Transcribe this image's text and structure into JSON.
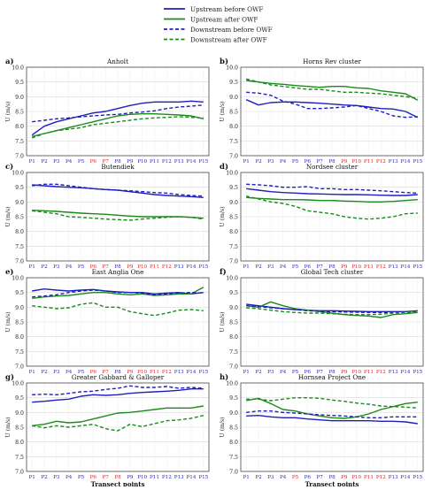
{
  "legend": [
    {
      "label": "Upstream before OWF",
      "color": "#1f1fbf",
      "dash": false
    },
    {
      "label": "Upstream after OWF",
      "color": "#1a8a1a",
      "dash": false
    },
    {
      "label": "Downstream before OWF",
      "color": "#1f1fbf",
      "dash": true
    },
    {
      "label": "Downstream after OWF",
      "color": "#1a8a1a",
      "dash": true
    }
  ],
  "xlabel": "Transect points",
  "ylabel": "U (m/s)",
  "yticks": [
    "7.0",
    "7.5",
    "8.0",
    "8.5",
    "9.0",
    "9.5",
    "10.0"
  ],
  "ylim": [
    7.0,
    10.0
  ],
  "categories": [
    "P1",
    "P2",
    "P3",
    "P4",
    "P5",
    "P6",
    "P7",
    "P8",
    "P9",
    "P10",
    "P11",
    "P12",
    "P13",
    "P14",
    "P15"
  ],
  "colors": {
    "blue": "#1f1fbf",
    "green": "#1a8a1a",
    "red_tick": "#e02020",
    "blue_tick": "#1f1fbf"
  },
  "chart_data": [
    {
      "type": "line",
      "panel_letter": "a)",
      "title": "Anholt",
      "red_ticks": [
        6,
        7
      ],
      "series": [
        {
          "name": "Upstream before OWF",
          "values": [
            7.7,
            8.0,
            8.15,
            8.25,
            8.35,
            8.45,
            8.5,
            8.6,
            8.7,
            8.78,
            8.82,
            8.82,
            8.82,
            8.85,
            8.82
          ]
        },
        {
          "name": "Upstream after OWF",
          "values": [
            7.65,
            7.75,
            7.85,
            7.95,
            8.05,
            8.15,
            8.25,
            8.35,
            8.4,
            8.42,
            8.42,
            8.4,
            8.38,
            8.35,
            8.25
          ]
        },
        {
          "name": "Downstream before OWF",
          "values": [
            8.15,
            8.2,
            8.25,
            8.28,
            8.32,
            8.35,
            8.38,
            8.4,
            8.45,
            8.48,
            8.52,
            8.6,
            8.65,
            8.68,
            8.72
          ]
        },
        {
          "name": "Downstream after OWF",
          "values": [
            7.6,
            7.75,
            7.85,
            7.9,
            7.95,
            8.05,
            8.1,
            8.15,
            8.2,
            8.25,
            8.28,
            8.3,
            8.32,
            8.3,
            8.28
          ]
        }
      ]
    },
    {
      "type": "line",
      "panel_letter": "b)",
      "title": "Horns Rev cluster",
      "red_ticks": [
        9,
        10,
        11,
        12
      ],
      "series": [
        {
          "name": "Upstream before OWF",
          "values": [
            8.9,
            8.72,
            8.8,
            8.82,
            8.82,
            8.8,
            8.78,
            8.75,
            8.72,
            8.7,
            8.65,
            8.6,
            8.58,
            8.5,
            8.3
          ]
        },
        {
          "name": "Upstream after OWF",
          "values": [
            9.55,
            9.5,
            9.45,
            9.42,
            9.38,
            9.35,
            9.32,
            9.35,
            9.35,
            9.3,
            9.28,
            9.2,
            9.15,
            9.1,
            8.88
          ]
        },
        {
          "name": "Downstream before OWF",
          "values": [
            9.15,
            9.12,
            9.05,
            8.85,
            8.75,
            8.6,
            8.6,
            8.62,
            8.65,
            8.7,
            8.6,
            8.5,
            8.35,
            8.3,
            8.32
          ]
        },
        {
          "name": "Downstream after OWF",
          "values": [
            9.6,
            9.5,
            9.4,
            9.35,
            9.3,
            9.25,
            9.25,
            9.2,
            9.15,
            9.15,
            9.12,
            9.1,
            9.05,
            9.0,
            8.95
          ]
        }
      ]
    },
    {
      "type": "line",
      "panel_letter": "c)",
      "title": "Butendiek",
      "red_ticks": [
        6,
        7,
        9,
        10,
        11,
        12
      ],
      "series": [
        {
          "name": "Upstream before OWF",
          "values": [
            9.58,
            9.55,
            9.52,
            9.5,
            9.48,
            9.45,
            9.42,
            9.4,
            9.35,
            9.3,
            9.25,
            9.22,
            9.2,
            9.18,
            9.15
          ]
        },
        {
          "name": "Upstream after OWF",
          "values": [
            8.72,
            8.7,
            8.68,
            8.65,
            8.62,
            8.6,
            8.58,
            8.55,
            8.52,
            8.5,
            8.5,
            8.5,
            8.5,
            8.48,
            8.45
          ]
        },
        {
          "name": "Downstream before OWF",
          "values": [
            9.55,
            9.6,
            9.6,
            9.55,
            9.5,
            9.45,
            9.42,
            9.4,
            9.38,
            9.35,
            9.32,
            9.3,
            9.25,
            9.22,
            9.2
          ]
        },
        {
          "name": "Downstream after OWF",
          "values": [
            8.7,
            8.65,
            8.6,
            8.5,
            8.48,
            8.45,
            8.42,
            8.4,
            8.38,
            8.42,
            8.45,
            8.48,
            8.5,
            8.48,
            8.42
          ]
        }
      ]
    },
    {
      "type": "line",
      "panel_letter": "d)",
      "title": "Nordsee cluster",
      "red_ticks": [
        9,
        10,
        11,
        12
      ],
      "series": [
        {
          "name": "Upstream before OWF",
          "values": [
            9.45,
            9.4,
            9.35,
            9.32,
            9.3,
            9.28,
            9.27,
            9.26,
            9.25,
            9.25,
            9.24,
            9.23,
            9.22,
            9.22,
            9.25
          ]
        },
        {
          "name": "Upstream after OWF",
          "values": [
            9.15,
            9.12,
            9.1,
            9.08,
            9.08,
            9.07,
            9.05,
            9.05,
            9.03,
            9.02,
            9.0,
            9.0,
            9.02,
            9.05,
            9.08
          ]
        },
        {
          "name": "Downstream before OWF",
          "values": [
            9.6,
            9.58,
            9.55,
            9.5,
            9.5,
            9.52,
            9.45,
            9.45,
            9.42,
            9.42,
            9.4,
            9.38,
            9.35,
            9.32,
            9.3
          ]
        },
        {
          "name": "Downstream after OWF",
          "values": [
            9.2,
            9.1,
            9.0,
            8.95,
            8.85,
            8.7,
            8.65,
            8.6,
            8.5,
            8.45,
            8.42,
            8.45,
            8.5,
            8.6,
            8.62
          ]
        }
      ]
    },
    {
      "type": "line",
      "panel_letter": "e)",
      "title": "East Anglia One",
      "red_ticks": [
        6,
        7,
        9,
        10,
        11,
        12
      ],
      "series": [
        {
          "name": "Upstream before OWF",
          "values": [
            9.55,
            9.62,
            9.58,
            9.55,
            9.58,
            9.6,
            9.55,
            9.52,
            9.5,
            9.5,
            9.45,
            9.48,
            9.5,
            9.45,
            9.5
          ]
        },
        {
          "name": "Upstream after OWF",
          "values": [
            9.3,
            9.35,
            9.38,
            9.4,
            9.45,
            9.5,
            9.5,
            9.45,
            9.42,
            9.45,
            9.4,
            9.42,
            9.45,
            9.45,
            9.68
          ]
        },
        {
          "name": "Downstream before OWF",
          "values": [
            9.35,
            9.38,
            9.42,
            9.5,
            9.55,
            9.58,
            9.55,
            9.5,
            9.5,
            9.48,
            9.42,
            9.45,
            9.48,
            9.5,
            9.48
          ]
        },
        {
          "name": "Downstream after OWF",
          "values": [
            9.05,
            9.0,
            8.95,
            8.98,
            9.1,
            9.15,
            9.0,
            9.0,
            8.85,
            8.78,
            8.72,
            8.8,
            8.9,
            8.92,
            8.88
          ]
        }
      ]
    },
    {
      "type": "line",
      "panel_letter": "f)",
      "title": "Global Tech cluster",
      "red_ticks": [
        9,
        10,
        11,
        12
      ],
      "series": [
        {
          "name": "Upstream before OWF",
          "values": [
            9.1,
            9.05,
            9.0,
            8.95,
            8.92,
            8.9,
            8.88,
            8.88,
            8.87,
            8.86,
            8.85,
            8.85,
            8.85,
            8.85,
            8.88
          ]
        },
        {
          "name": "Upstream after OWF",
          "values": [
            9.05,
            9.0,
            9.18,
            9.05,
            8.95,
            8.9,
            8.85,
            8.8,
            8.75,
            8.72,
            8.7,
            8.65,
            8.75,
            8.78,
            8.82
          ]
        },
        {
          "name": "Downstream before OWF",
          "values": [
            9.05,
            9.02,
            8.98,
            8.95,
            8.92,
            8.88,
            8.86,
            8.85,
            8.84,
            8.83,
            8.82,
            8.82,
            8.82,
            8.83,
            8.85
          ]
        },
        {
          "name": "Downstream after OWF",
          "values": [
            8.98,
            8.95,
            8.9,
            8.85,
            8.82,
            8.8,
            8.8,
            8.78,
            8.76,
            8.75,
            8.75,
            8.76,
            8.8,
            8.82,
            8.85
          ]
        }
      ]
    },
    {
      "type": "line",
      "panel_letter": "g)",
      "title": "Greater Gabbard & Galloper",
      "red_ticks": [
        6,
        7,
        8
      ],
      "series": [
        {
          "name": "Upstream before OWF",
          "values": [
            9.35,
            9.38,
            9.42,
            9.45,
            9.55,
            9.6,
            9.58,
            9.6,
            9.65,
            9.68,
            9.7,
            9.72,
            9.75,
            9.8,
            9.8
          ]
        },
        {
          "name": "Upstream after OWF",
          "values": [
            8.55,
            8.6,
            8.7,
            8.65,
            8.68,
            8.78,
            8.88,
            8.98,
            9.0,
            9.05,
            9.1,
            9.15,
            9.15,
            9.15,
            9.22
          ]
        },
        {
          "name": "Downstream before OWF",
          "values": [
            9.6,
            9.62,
            9.6,
            9.65,
            9.7,
            9.72,
            9.78,
            9.82,
            9.9,
            9.85,
            9.85,
            9.88,
            9.82,
            9.85,
            9.82
          ]
        },
        {
          "name": "Downstream after OWF",
          "values": [
            8.55,
            8.48,
            8.55,
            8.5,
            8.55,
            8.6,
            8.45,
            8.38,
            8.6,
            8.52,
            8.62,
            8.72,
            8.75,
            8.8,
            8.9
          ]
        }
      ]
    },
    {
      "type": "line",
      "panel_letter": "h)",
      "title": "Hornsea Project One",
      "red_ticks": [
        5,
        9,
        10,
        11,
        12
      ],
      "series": [
        {
          "name": "Upstream before OWF",
          "values": [
            8.88,
            8.9,
            8.85,
            8.82,
            8.82,
            8.78,
            8.75,
            8.72,
            8.72,
            8.72,
            8.72,
            8.7,
            8.7,
            8.68,
            8.62
          ]
        },
        {
          "name": "Upstream after OWF",
          "values": [
            9.4,
            9.48,
            9.3,
            9.1,
            9.05,
            8.95,
            8.88,
            8.82,
            8.8,
            8.85,
            8.95,
            9.1,
            9.2,
            9.3,
            9.35
          ]
        },
        {
          "name": "Downstream before OWF",
          "values": [
            9.0,
            9.05,
            9.05,
            9.0,
            8.98,
            8.95,
            8.92,
            8.9,
            8.88,
            8.85,
            8.82,
            8.82,
            8.85,
            8.85,
            8.85
          ]
        },
        {
          "name": "Downstream after OWF",
          "values": [
            9.45,
            9.45,
            9.4,
            9.45,
            9.5,
            9.5,
            9.48,
            9.42,
            9.38,
            9.32,
            9.28,
            9.22,
            9.2,
            9.18,
            9.15
          ]
        }
      ]
    }
  ]
}
